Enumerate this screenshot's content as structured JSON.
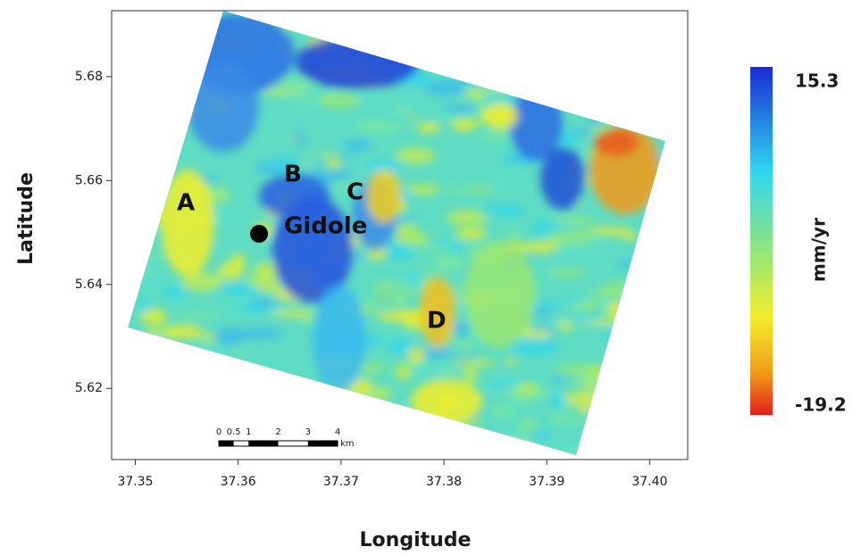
{
  "map": {
    "xlabel": "Longitude",
    "ylabel": "Latitude",
    "xlim": [
      37.3477,
      37.4037
    ],
    "ylim": [
      5.6063,
      5.6927
    ],
    "xticks": [
      37.35,
      37.36,
      37.37,
      37.38,
      37.39,
      {
        "value": 37.4,
        "label": "37.40"
      }
    ],
    "yticks": [
      5.62,
      5.64,
      5.66,
      5.68
    ],
    "site_labels": [
      "A",
      "B",
      "C",
      "D"
    ],
    "town": "Gidole",
    "colorbar": {
      "max": 15.3,
      "min": -19.2,
      "label": "mm/yr"
    },
    "scale_bar": {
      "ticks": [
        0,
        0.5,
        1,
        2,
        3,
        4
      ],
      "unit": "km"
    }
  }
}
